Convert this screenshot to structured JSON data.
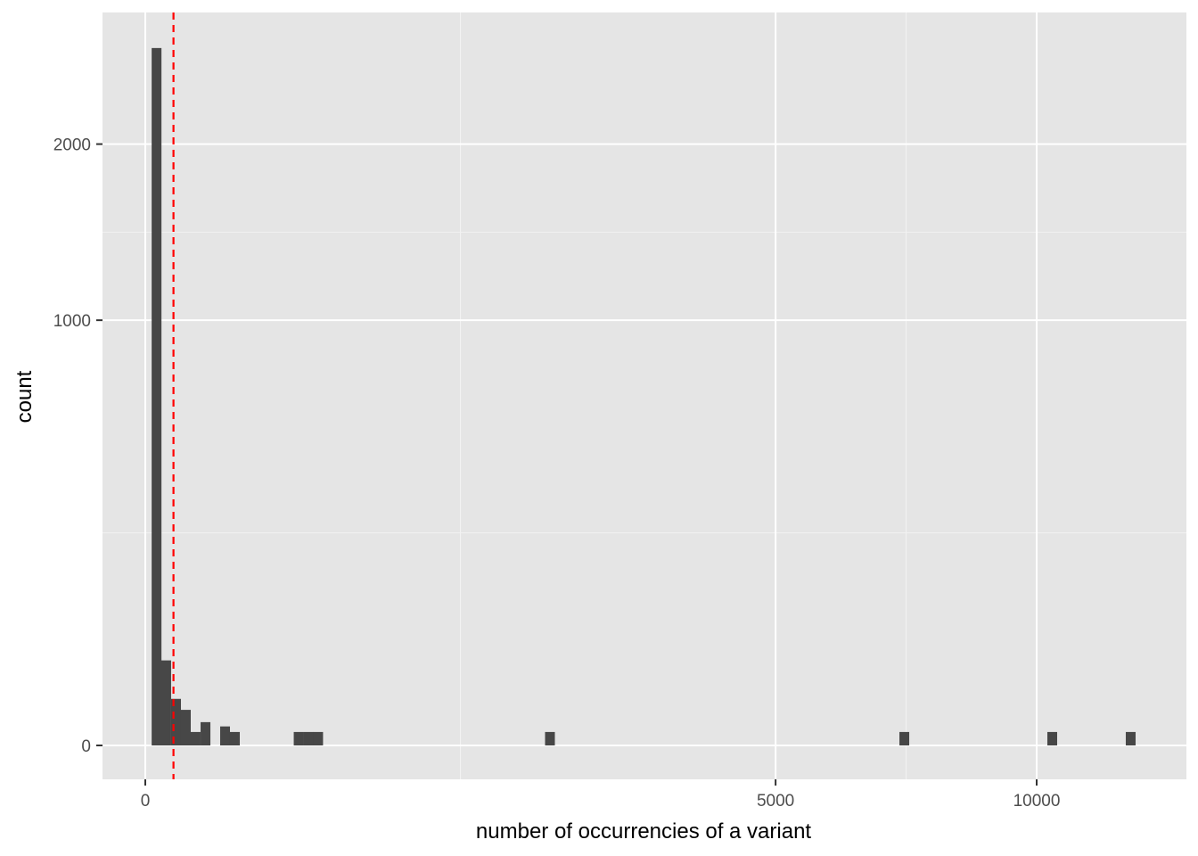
{
  "chart_data": {
    "type": "bar",
    "subtype": "histogram",
    "xlabel": "number of occurrencies of a variant",
    "ylabel": "count",
    "x_scale": "sqrt",
    "y_scale": "sqrt",
    "xlim": [
      0,
      12800
    ],
    "ylim": [
      0,
      2750
    ],
    "x_ticks": [
      {
        "value": 0,
        "label": "0"
      },
      {
        "value": 5000,
        "label": "5000"
      },
      {
        "value": 10000,
        "label": "10000"
      }
    ],
    "y_ticks": [
      {
        "value": 0,
        "label": "0"
      },
      {
        "value": 1000,
        "label": "1000"
      },
      {
        "value": 2000,
        "label": "2000"
      }
    ],
    "grid": true,
    "bar_color": "#474747",
    "panel_color": "#e5e5e5",
    "bins": [
      {
        "x": 1.6,
        "count": 2690
      },
      {
        "x": 5.5,
        "count": 40
      },
      {
        "x": 11.9,
        "count": 12
      },
      {
        "x": 20.7,
        "count": 7
      },
      {
        "x": 31.9,
        "count": 1
      },
      {
        "x": 45.6,
        "count": 3
      },
      {
        "x": 80.1,
        "count": 2
      },
      {
        "x": 101,
        "count": 1
      },
      {
        "x": 296,
        "count": 1
      },
      {
        "x": 335,
        "count": 1
      },
      {
        "x": 376,
        "count": 1
      },
      {
        "x": 2061,
        "count": 1
      },
      {
        "x": 7251,
        "count": 1
      },
      {
        "x": 10353,
        "count": 1
      },
      {
        "x": 12221,
        "count": 1
      }
    ],
    "vline": {
      "x": 10,
      "color": "#ff0000",
      "style": "dashed"
    }
  }
}
